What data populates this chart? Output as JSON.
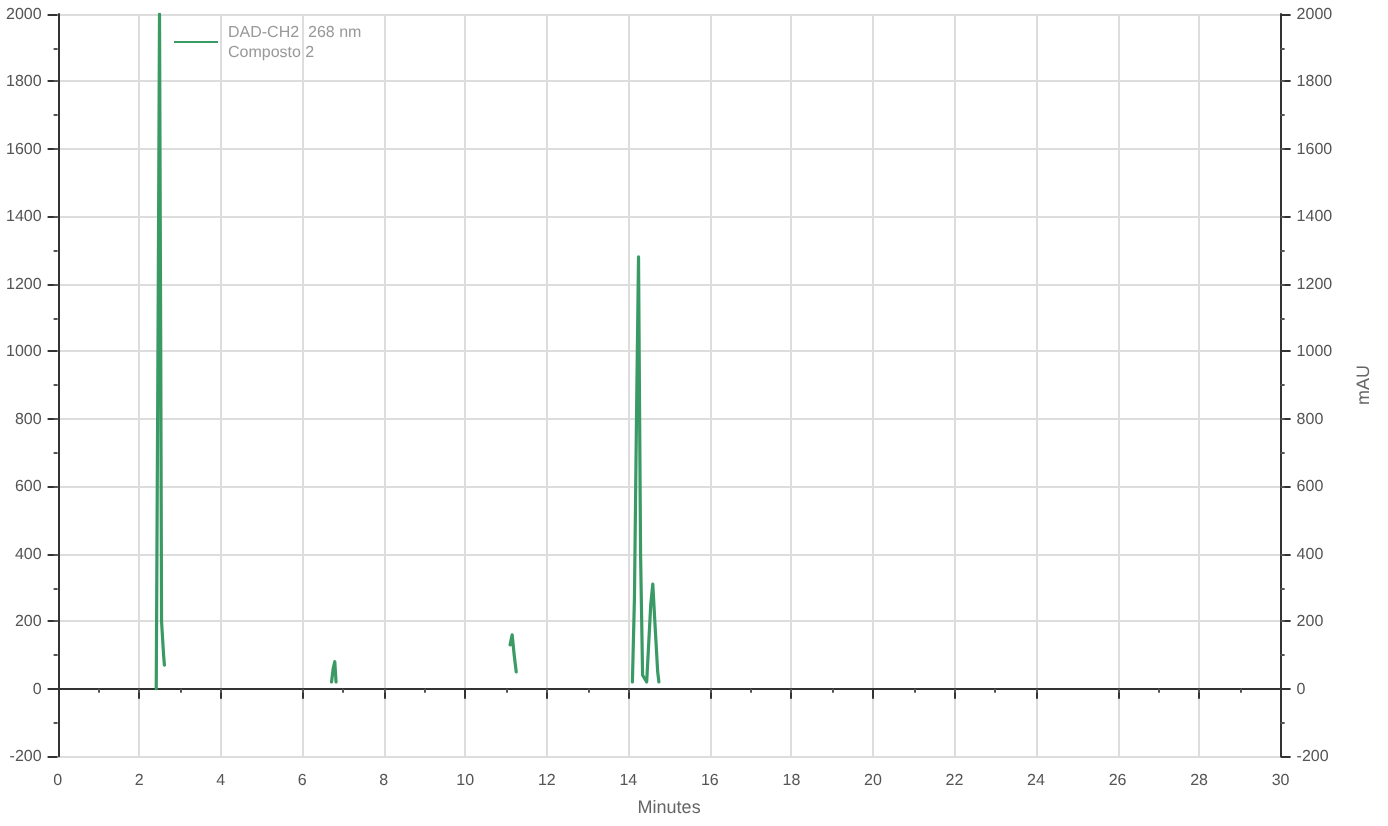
{
  "chart_data": {
    "type": "line",
    "xlabel": "Minutes",
    "y2label": "mAU",
    "series": [
      {
        "name": "DAD-CH2  268 nm\nComposto 2",
        "color": "#3a9a64",
        "x": [
          2.42,
          2.47,
          2.5,
          2.53,
          2.55,
          2.6,
          2.62
        ],
        "values": [
          0,
          1200,
          2000,
          1000,
          200,
          100,
          70
        ]
      },
      {
        "color": "#3b9a64",
        "x": [
          6.72,
          6.76,
          6.8,
          6.83
        ],
        "values": [
          20,
          60,
          80,
          20
        ]
      },
      {
        "color": "#3a9b64",
        "x": [
          11.1,
          11.15,
          11.2,
          11.25
        ],
        "values": [
          130,
          160,
          100,
          50
        ]
      },
      {
        "color": "#3a9a65",
        "x": [
          14.1,
          14.15,
          14.2,
          14.25,
          14.3,
          14.35,
          14.45,
          14.55,
          14.6,
          14.65,
          14.72,
          14.75
        ],
        "values": [
          20,
          270,
          800,
          1280,
          400,
          40,
          20,
          250,
          310,
          200,
          50,
          20
        ]
      }
    ],
    "xlim": [
      0,
      30
    ],
    "xticks": [
      0,
      2,
      4,
      6,
      8,
      10,
      12,
      14,
      16,
      18,
      20,
      22,
      24,
      26,
      28,
      30
    ],
    "ylim": [
      -200,
      2000
    ],
    "yticks": [
      -200,
      0,
      200,
      400,
      600,
      800,
      1000,
      1200,
      1400,
      1600,
      1800,
      2000
    ],
    "y2lim": [
      -200,
      2000
    ],
    "y2ticks": [
      -200,
      0,
      200,
      400,
      600,
      800,
      1000,
      1200,
      1400,
      1600,
      1800,
      2000
    ],
    "grid": true,
    "legend": "top left",
    "marker": "none",
    "line_style": "solid"
  }
}
